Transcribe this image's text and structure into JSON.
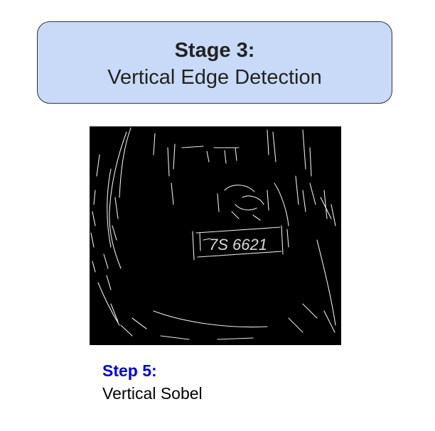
{
  "stage": {
    "title": "Stage 3:",
    "subtitle": "Vertical Edge Detection"
  },
  "image": {
    "plate_text": "7S 6621"
  },
  "step": {
    "label": "Step 5:",
    "description": "Vertical Sobel"
  },
  "colors": {
    "stage_fill": "#c9daf8",
    "stage_border": "#333333",
    "step_label": "#0000cc",
    "edge_background": "#000000",
    "edge_lines": "#ffffff"
  }
}
